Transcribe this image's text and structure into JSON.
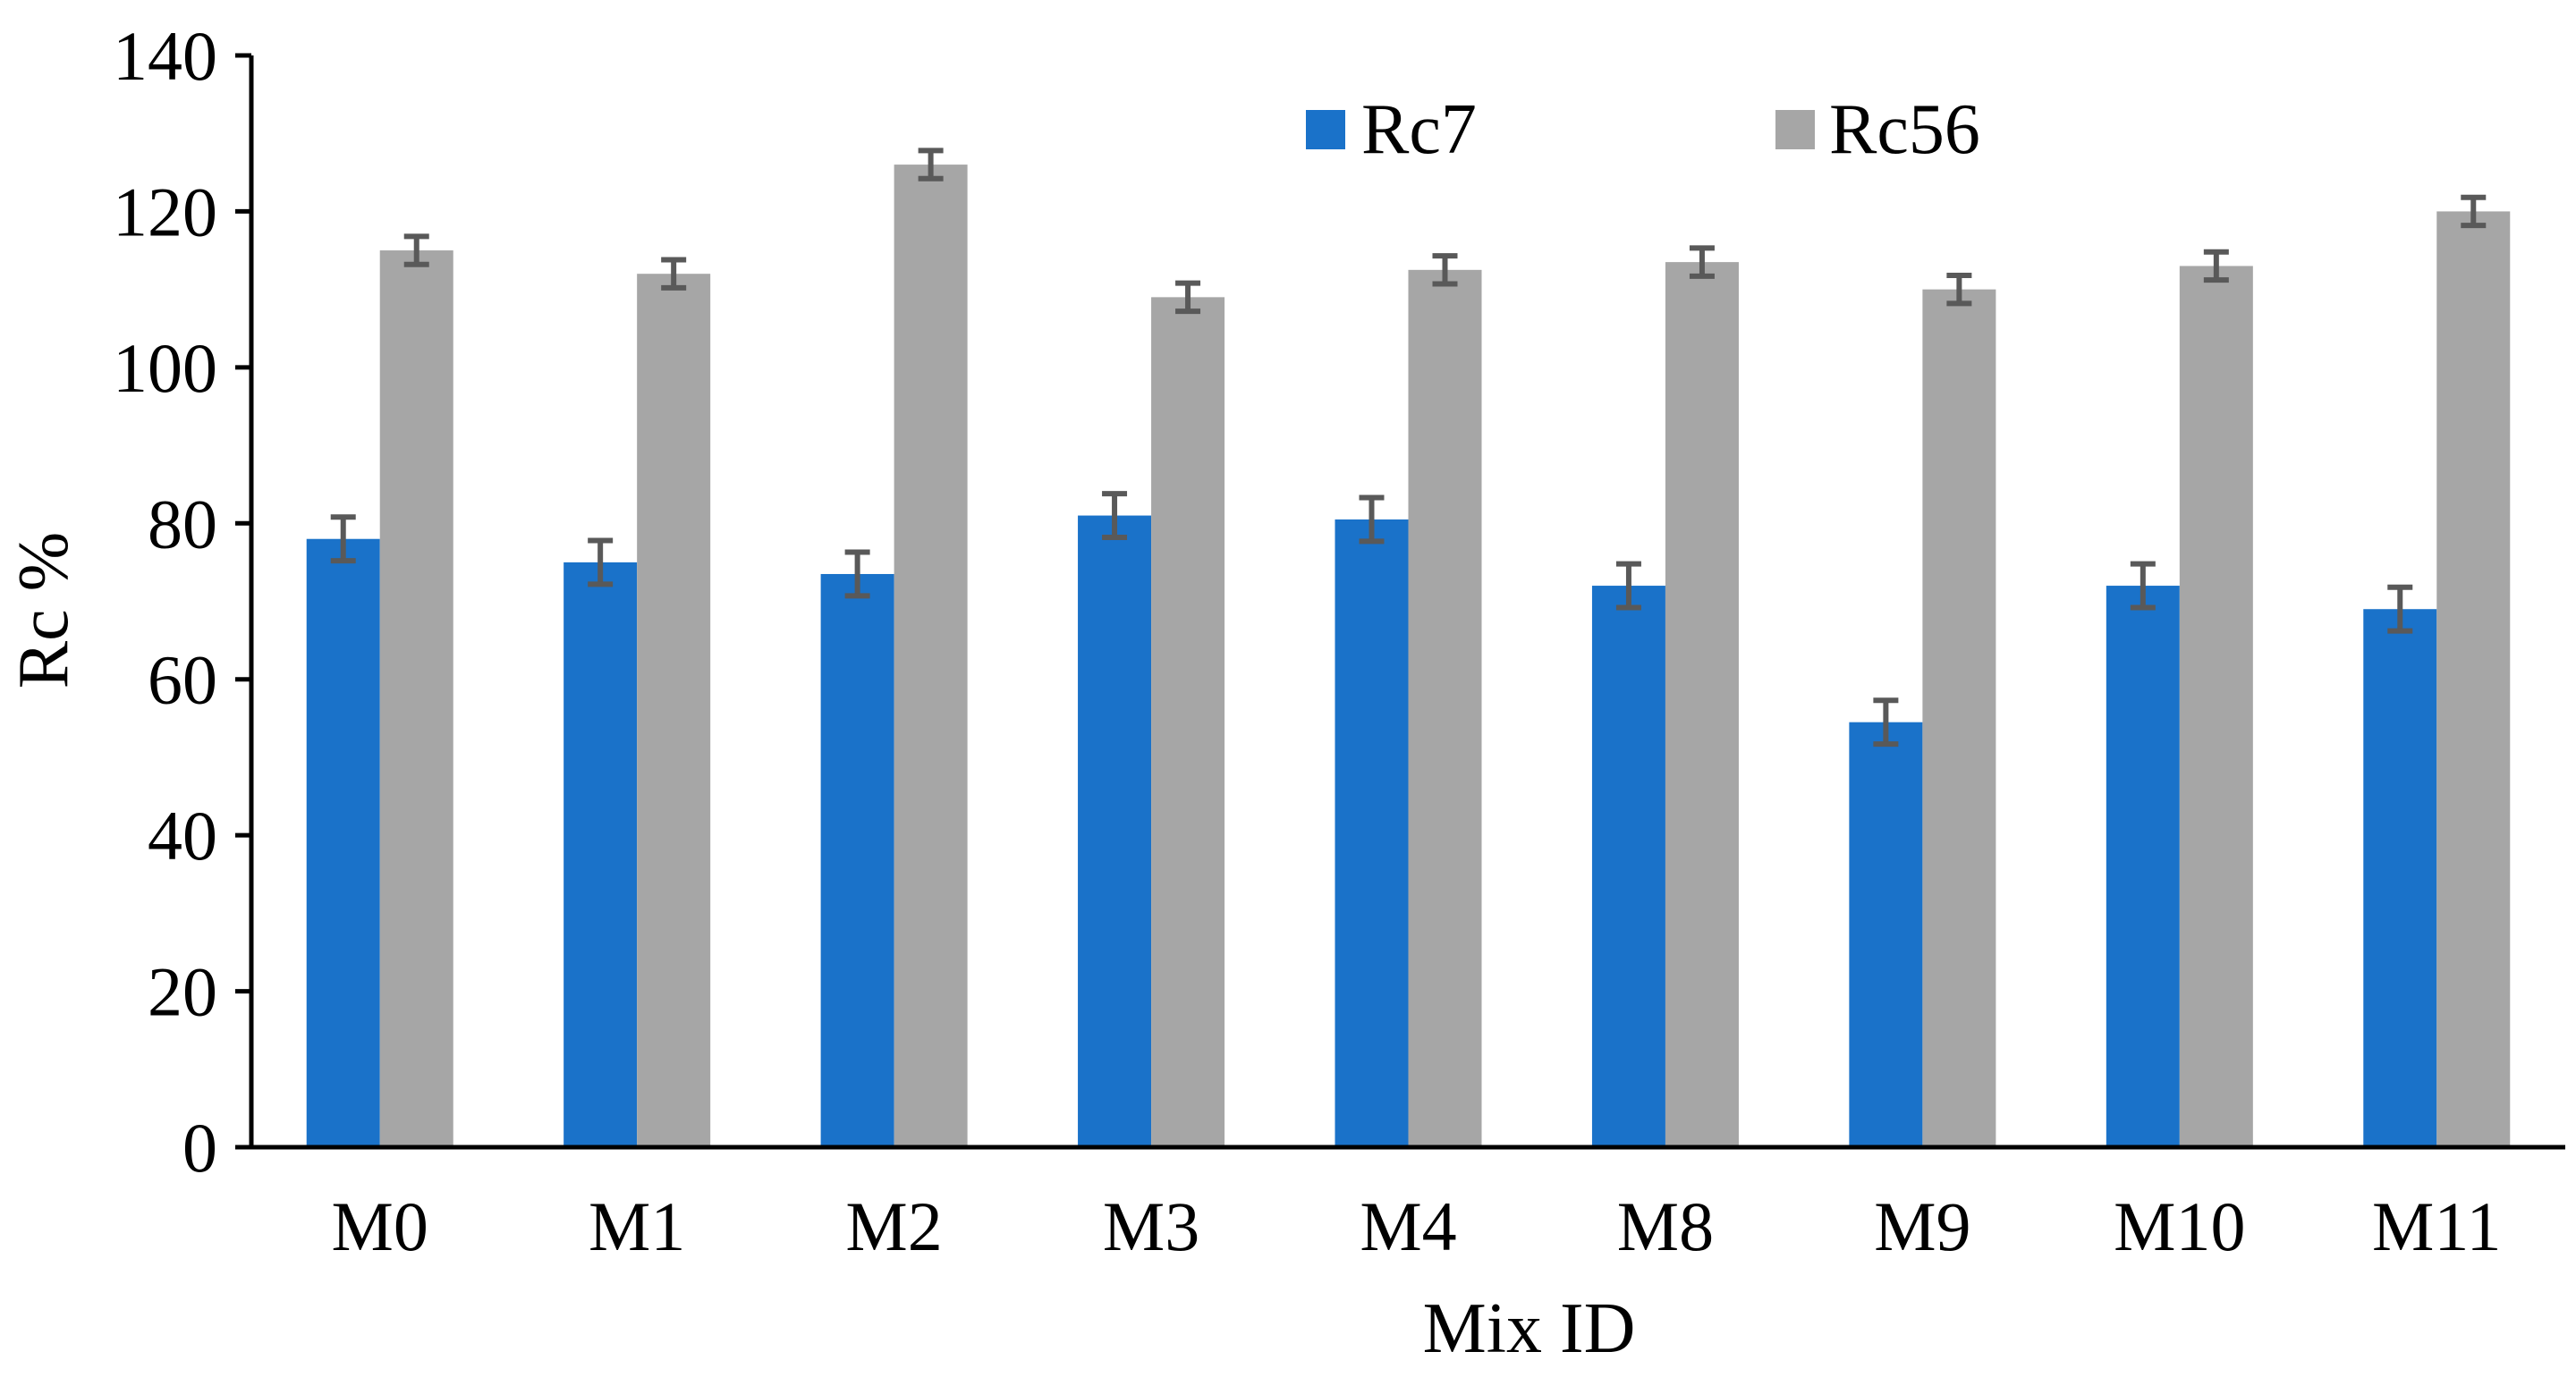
{
  "chart_data": {
    "type": "bar",
    "title": "",
    "xlabel": "Mix ID",
    "ylabel": "Rc %",
    "ylim": [
      0,
      140
    ],
    "yticks": [
      0,
      20,
      40,
      60,
      80,
      100,
      120,
      140
    ],
    "grid": false,
    "legend_position": "top-right",
    "categories": [
      "M0",
      "M1",
      "M2",
      "M3",
      "M4",
      "M8",
      "M9",
      "M10",
      "M11"
    ],
    "series": [
      {
        "name": "Rc7",
        "color": "#1a72c9",
        "values": [
          78,
          75,
          73.5,
          81,
          80.5,
          72,
          54.5,
          72,
          69
        ],
        "errors": [
          2.8,
          2.8,
          2.8,
          2.8,
          2.8,
          2.8,
          2.8,
          2.8,
          2.8
        ]
      },
      {
        "name": "Rc56",
        "color": "#a6a6a6",
        "values": [
          115,
          112,
          126,
          109,
          112.5,
          113.5,
          110,
          113,
          120
        ],
        "errors": [
          1.8,
          1.8,
          1.8,
          1.8,
          1.8,
          1.8,
          1.8,
          1.8,
          1.8
        ]
      }
    ],
    "error_bar_color": "#595959"
  }
}
